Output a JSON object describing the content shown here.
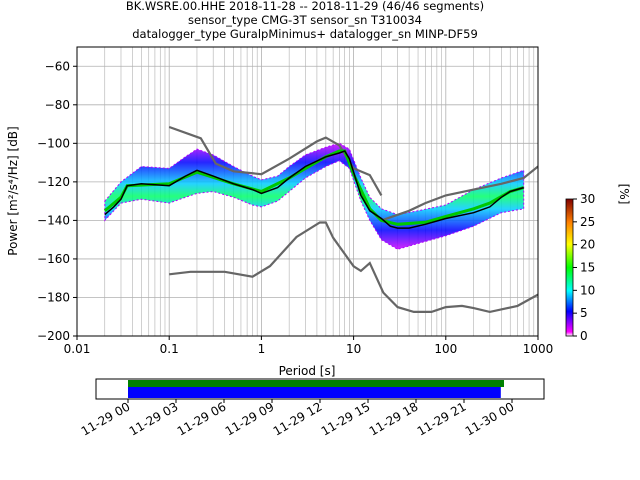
{
  "title_lines": [
    "BK.WSRE.00.HHE   2018-11-28 -- 2018-11-29  (46/46 segments)",
    "sensor_type CMG-3T sensor_sn T310034",
    "datalogger_type GuralpMinimus+ datalogger_sn MINP-DF59"
  ],
  "chart_data": [
    {
      "type": "heatmap",
      "xlabel": "Period [s]",
      "ylabel": "Power [m²/s⁴/Hz] [dB]",
      "xscale": "log",
      "xlim": [
        0.01,
        1000
      ],
      "ylim": [
        -200,
        -50
      ],
      "x_ticks": [
        {
          "v": 0.01,
          "label": "0.01"
        },
        {
          "v": 0.1,
          "label": "0.1"
        },
        {
          "v": 1,
          "label": "1"
        },
        {
          "v": 10,
          "label": "10"
        },
        {
          "v": 100,
          "label": "100"
        },
        {
          "v": 1000,
          "label": "1000"
        }
      ],
      "y_ticks": [
        {
          "v": -60,
          "label": "−60"
        },
        {
          "v": -80,
          "label": "−80"
        },
        {
          "v": -100,
          "label": "−100"
        },
        {
          "v": -120,
          "label": "−120"
        },
        {
          "v": -140,
          "label": "−140"
        },
        {
          "v": -160,
          "label": "−160"
        },
        {
          "v": -180,
          "label": "−180"
        },
        {
          "v": -200,
          "label": "−200"
        }
      ],
      "grid": true,
      "colorbar": {
        "label": "[%]",
        "range": [
          0,
          30
        ],
        "ticks": [
          {
            "v": 0,
            "label": "0"
          },
          {
            "v": 5,
            "label": "5"
          },
          {
            "v": 10,
            "label": "10"
          },
          {
            "v": 15,
            "label": "15"
          },
          {
            "v": 20,
            "label": "20"
          },
          {
            "v": 25,
            "label": "25"
          },
          {
            "v": 30,
            "label": "30"
          }
        ]
      },
      "mean_psd": {
        "color": "#000000",
        "x": [
          0.02,
          0.025,
          0.03,
          0.035,
          0.05,
          0.1,
          0.15,
          0.2,
          0.3,
          0.5,
          0.8,
          1.0,
          1.5,
          2,
          3,
          5,
          7,
          8,
          9,
          10,
          12,
          15,
          20,
          25,
          30,
          40,
          60,
          100,
          200,
          300,
          400,
          500,
          700
        ],
        "y": [
          -137,
          -133,
          -129,
          -122,
          -121,
          -122,
          -117,
          -114,
          -117,
          -121,
          -124,
          -126,
          -123,
          -118,
          -112,
          -107,
          -105,
          -104,
          -108,
          -115,
          -127,
          -135,
          -139,
          -143,
          -144,
          -144,
          -142,
          -139,
          -136,
          -133,
          -128,
          -125,
          -123
        ]
      },
      "mode_psd": {
        "color": "#00c800",
        "x": [
          0.02,
          0.03,
          0.035,
          0.1,
          0.2,
          0.5,
          1.0,
          2,
          3,
          5,
          7,
          8,
          10,
          15,
          20,
          30,
          60,
          100,
          200,
          300,
          500,
          700
        ],
        "y": [
          -135,
          -128,
          -122,
          -121,
          -115,
          -121,
          -125,
          -118,
          -113,
          -107,
          -104,
          -104,
          -116,
          -134,
          -140,
          -142,
          -141,
          -138,
          -134,
          -131,
          -125,
          -123
        ]
      },
      "noise_models": [
        {
          "name": "NHNM",
          "color": "#666666",
          "x": [
            0.1,
            0.22,
            0.32,
            0.5,
            1.0,
            2,
            4,
            5,
            7,
            10,
            15,
            20
          ],
          "y": [
            -91.5,
            -97.4,
            -110.5,
            -114.5,
            -116,
            -108,
            -99,
            -97,
            -101,
            -113,
            -116.5,
            -127
          ]
        },
        {
          "name": "NHNM-long",
          "color": "#666666",
          "x": [
            20,
            40,
            60,
            100,
            200,
            400,
            700,
            1000
          ],
          "y": [
            -140,
            -135,
            -131,
            -127,
            -124,
            -121,
            -118,
            -112
          ]
        },
        {
          "name": "NLNM",
          "color": "#666666",
          "x": [
            0.1,
            0.17,
            0.4,
            0.8,
            1.24,
            2.4,
            4.3,
            5,
            6,
            10,
            12,
            15,
            21,
            30,
            45,
            70,
            100,
            150,
            200,
            300,
            600,
            1000
          ],
          "y": [
            -168,
            -166.7,
            -166.7,
            -169.2,
            -163.7,
            -148.6,
            -141.1,
            -141.1,
            -149,
            -163.8,
            -166.2,
            -162.1,
            -177.5,
            -185,
            -187.5,
            -187.5,
            -185,
            -184.4,
            -185.5,
            -187.5,
            -184.4,
            -178.5
          ]
        }
      ],
      "density_band": [
        {
          "x": 0.02,
          "lo": -140,
          "hi": -130
        },
        {
          "x": 0.03,
          "lo": -131,
          "hi": -120
        },
        {
          "x": 0.05,
          "lo": -129,
          "hi": -112
        },
        {
          "x": 0.1,
          "lo": -131,
          "hi": -113
        },
        {
          "x": 0.15,
          "lo": -128,
          "hi": -107
        },
        {
          "x": 0.2,
          "lo": -126,
          "hi": -103
        },
        {
          "x": 0.3,
          "lo": -125,
          "hi": -106
        },
        {
          "x": 0.5,
          "lo": -128,
          "hi": -112
        },
        {
          "x": 0.8,
          "lo": -132,
          "hi": -117
        },
        {
          "x": 1.0,
          "lo": -133,
          "hi": -119
        },
        {
          "x": 1.5,
          "lo": -130,
          "hi": -117
        },
        {
          "x": 2,
          "lo": -125,
          "hi": -112
        },
        {
          "x": 3,
          "lo": -118,
          "hi": -106
        },
        {
          "x": 5,
          "lo": -112,
          "hi": -102
        },
        {
          "x": 7,
          "lo": -109,
          "hi": -100
        },
        {
          "x": 9,
          "lo": -113,
          "hi": -103
        },
        {
          "x": 12,
          "lo": -130,
          "hi": -118
        },
        {
          "x": 15,
          "lo": -140,
          "hi": -128
        },
        {
          "x": 20,
          "lo": -150,
          "hi": -134
        },
        {
          "x": 30,
          "lo": -155,
          "hi": -137
        },
        {
          "x": 50,
          "lo": -152,
          "hi": -135
        },
        {
          "x": 100,
          "lo": -148,
          "hi": -132
        },
        {
          "x": 200,
          "lo": -143,
          "hi": -124
        },
        {
          "x": 400,
          "lo": -136,
          "hi": -118
        },
        {
          "x": 700,
          "lo": -134,
          "hi": -114
        }
      ]
    },
    {
      "type": "bar",
      "orientation": "horizontal",
      "x_ticks": [
        "11-29 00",
        "11-29 03",
        "11-29 06",
        "11-29 09",
        "11-29 12",
        "11-29 15",
        "11-29 18",
        "11-29 21",
        "11-30 00"
      ],
      "xlim_hours": [
        -2,
        26
      ],
      "series": [
        {
          "color": "#008000",
          "start_hour": 0,
          "end_hour": 23.5
        },
        {
          "color": "#0000ff",
          "start_hour": 0,
          "end_hour": 23.3
        }
      ]
    }
  ]
}
